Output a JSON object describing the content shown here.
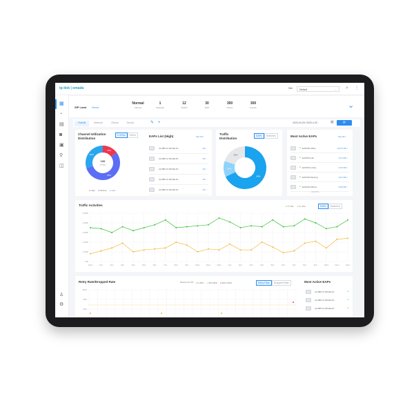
{
  "topbar": {
    "logo": "tp-link | omada",
    "site_label": "Site",
    "site_value": "Default"
  },
  "summary": {
    "title": "SIP Load",
    "status": "Good",
    "stats": [
      {
        "value": "Normal",
        "label": "Internet"
      },
      {
        "value": "1",
        "label": "Gateway"
      },
      {
        "value": "12",
        "label": "Switch"
      },
      {
        "value": "30",
        "label": "EAP"
      },
      {
        "value": "300",
        "label": "Clients"
      },
      {
        "value": "300",
        "label": "Guests"
      }
    ]
  },
  "tabs": [
    "Overall",
    "Network",
    "Clients",
    "Device"
  ],
  "date_range": "2020-04-09~2020-4-30",
  "channel": {
    "title_1": "Channel Utilization",
    "title_2": "Distribution",
    "bands": [
      "2.4GHz",
      "5GHz"
    ],
    "center_value": "120",
    "center_label": "TOTAL",
    "slices": [
      {
        "name": "High",
        "value": 15,
        "label": "15%",
        "color": "#f0364f"
      },
      {
        "name": "Medium",
        "value": 55,
        "label": "55%",
        "color": "#5b6ef5"
      },
      {
        "name": "Low",
        "value": 30,
        "label": "30%",
        "color": "#2aa6f0"
      }
    ]
  },
  "eaps_list": {
    "title": "EAPs List (High)",
    "see_all": "See All >",
    "rows": [
      {
        "mac": "AA:BB:CC:DD:EE:FF",
        "value": "1% ↑"
      },
      {
        "mac": "AA:BB:CC:DD:EE:FF",
        "value": "1% ↑"
      },
      {
        "mac": "AA:BB:CC:DD:EE:FF",
        "value": "1% ↑"
      },
      {
        "mac": "AA:BB:CC:DD:EE:FF",
        "value": "1% ↑"
      },
      {
        "mac": "AA:BB:CC:DD:EE:FF",
        "value": "1% ↑"
      }
    ]
  },
  "traffic_dist": {
    "title_1": "Traffic",
    "title_2": "Distribution",
    "toggles": [
      "EAPs",
      "Switches"
    ],
    "slices": [
      {
        "value": 68,
        "label": "68%",
        "color": "#1aa3ee"
      },
      {
        "value": 12,
        "label": "12%",
        "color": "#8fd3fb"
      },
      {
        "value": 20,
        "label": "20%",
        "color": "#e6e7ea"
      }
    ]
  },
  "most_active": {
    "title": "Most Active EAPs",
    "see_all": "See All >",
    "rows": [
      {
        "name": "EAP225-Office",
        "value": "22.67 GB ↑"
      },
      {
        "name": "EAP225-Lab",
        "value": "12.5 GB ↑"
      },
      {
        "name": "EAP225-Lobby",
        "value": "12.5 GB ↑"
      },
      {
        "name": "EAP225-Meeting",
        "value": "12.5 GB ↑"
      },
      {
        "name": "EAP225-Office1",
        "value": "9.80 GB ↑"
      }
    ],
    "pages": "‹ 1 2 3 4 ›"
  },
  "chart_data": {
    "type": "line",
    "title": "Traffic Activities",
    "toggles": [
      "EAPs",
      "Switches"
    ],
    "ylim": [
      0,
      5000
    ],
    "yticks": [
      "0.00",
      "1,000K",
      "2,000K",
      "3,000K",
      "4,000K",
      "5,000K"
    ],
    "x": [
      "12am",
      "1am",
      "2am",
      "3am",
      "4am",
      "5am",
      "6am",
      "7am",
      "8am",
      "9am",
      "10am",
      "11am",
      "12pm",
      "1pm",
      "2pm",
      "3pm",
      "4pm",
      "5pm",
      "6pm",
      "7pm",
      "8pm",
      "9pm",
      "10pm",
      "11pm",
      "12am"
    ],
    "series": [
      {
        "name": "Tx Bits",
        "color": "#3cc13b",
        "values": [
          3500,
          3400,
          3000,
          3600,
          3200,
          3500,
          3800,
          4300,
          3500,
          3600,
          3700,
          3800,
          4500,
          4100,
          3500,
          3700,
          3600,
          4300,
          3600,
          3700,
          4400,
          4000,
          3400,
          3600,
          4300
        ]
      },
      {
        "name": "Rx Bits",
        "color": "#f5b83d",
        "values": [
          800,
          1100,
          1400,
          1900,
          1000,
          1200,
          1300,
          1400,
          2000,
          1700,
          1000,
          1300,
          1200,
          1800,
          1200,
          1200,
          2000,
          1500,
          900,
          1100,
          1900,
          2100,
          1400,
          2300,
          2400
        ]
      }
    ]
  },
  "retry": {
    "title": "Retry Rate/Dropped Rate",
    "legend_label": "Retries per AP:",
    "legend": [
      {
        "label": "0-40%",
        "color": "#3cc13b"
      },
      {
        "label": "40%-80%",
        "color": "#f5b83d"
      },
      {
        "label": "80%-100%",
        "color": "#f0364f"
      }
    ],
    "toggles": [
      "Retry Rate",
      "Dropped Rate"
    ],
    "yticks": [
      "100%",
      "80%",
      "60%"
    ]
  },
  "most_active_2": {
    "title": "Most Active EAPs",
    "rows": [
      "AA:BB:CC:DD:EE:FF",
      "AA:BB:CC:DD:EE:FF",
      "AA:BB:CC:DD:EE:FF"
    ]
  }
}
